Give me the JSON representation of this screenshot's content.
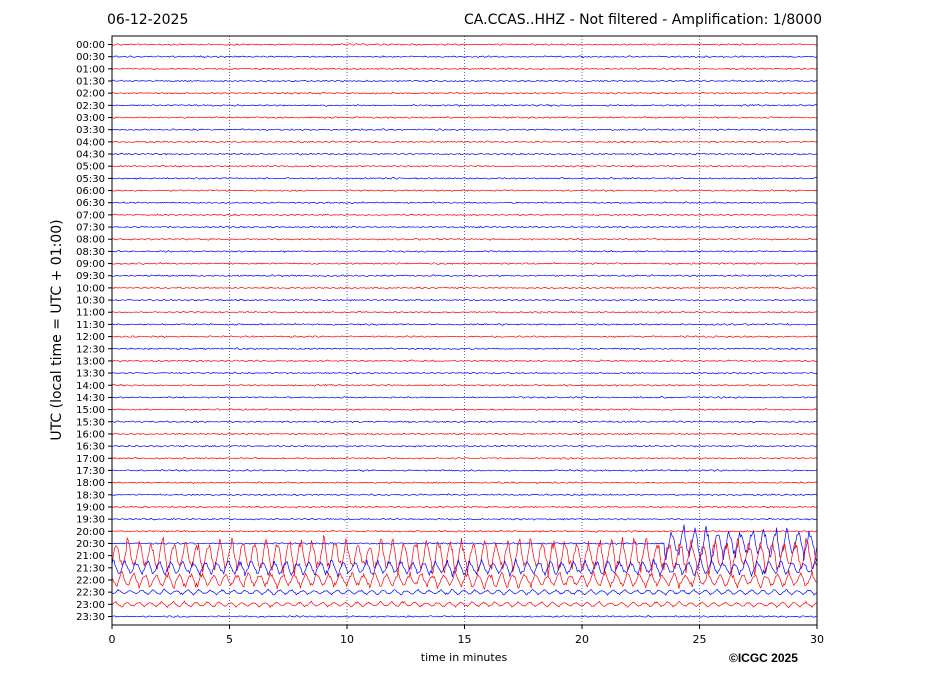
{
  "header": {
    "date": "06-12-2025",
    "title": "CA.CCAS..HHZ - Not filtered - Amplification: 1/8000"
  },
  "footer": {
    "copyright": "©ICGC 2025"
  },
  "chart_data": {
    "type": "line",
    "title": "CA.CCAS..HHZ - Not filtered - Amplification: 1/8000",
    "xlabel": "time in minutes",
    "ylabel": "UTC (local time = UTC + 01:00)",
    "xlim": [
      0,
      30
    ],
    "x_ticks": [
      0,
      5,
      10,
      15,
      20,
      25,
      30
    ],
    "y_ticks": [
      "00:00",
      "00:30",
      "01:00",
      "01:30",
      "02:00",
      "02:30",
      "03:00",
      "03:30",
      "04:00",
      "04:30",
      "05:00",
      "05:30",
      "06:00",
      "06:30",
      "07:00",
      "07:30",
      "08:00",
      "08:30",
      "09:00",
      "09:30",
      "10:00",
      "10:30",
      "11:00",
      "11:30",
      "12:00",
      "12:30",
      "13:00",
      "13:30",
      "14:00",
      "14:30",
      "15:00",
      "15:30",
      "16:00",
      "16:30",
      "17:00",
      "17:30",
      "18:00",
      "18:30",
      "19:00",
      "19:30",
      "20:00",
      "20:30",
      "21:00",
      "21:30",
      "22:00",
      "22:30",
      "23:00",
      "23:30"
    ],
    "grid": {
      "vertical_dotted": true
    },
    "colors": {
      "even_trace": "#ff0000",
      "odd_trace": "#0000ff",
      "frame": "#000000",
      "grid": "#00008b"
    },
    "trace_activity": [
      {
        "label": "20:30",
        "start_min": 23.5,
        "end_min": 30,
        "level": "large"
      },
      {
        "label": "21:00",
        "start_min": 0,
        "end_min": 30,
        "level": "large"
      },
      {
        "label": "21:30",
        "start_min": 0,
        "end_min": 30,
        "level": "medium"
      },
      {
        "label": "22:00",
        "start_min": 0,
        "end_min": 30,
        "level": "medium"
      },
      {
        "label": "22:30",
        "start_min": 0,
        "end_min": 30,
        "level": "small"
      },
      {
        "label": "23:00",
        "start_min": 0,
        "end_min": 30,
        "level": "small"
      }
    ]
  }
}
